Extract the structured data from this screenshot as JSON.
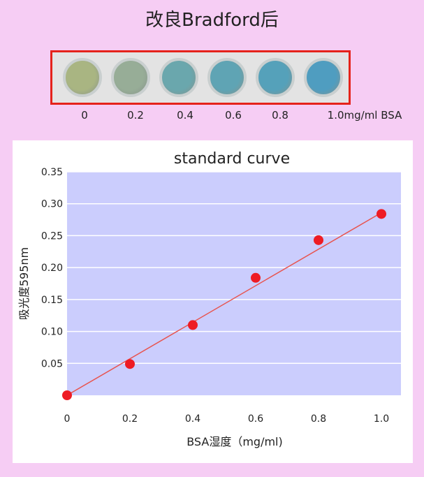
{
  "header": {
    "title": "改良Bradford后"
  },
  "wells": {
    "labels": [
      "0",
      "0.2",
      "0.4",
      "0.6",
      "0.8",
      "1.0mg/ml BSA"
    ],
    "colors": [
      "#a9b582",
      "#97ad97",
      "#6aa7ad",
      "#5fa4b4",
      "#55a1ba",
      "#4f9dc0"
    ],
    "frame_color": "#e5231b"
  },
  "chart_data": {
    "type": "scatter",
    "title": "standard curve",
    "xlabel": "BSA湿度（mg/ml)",
    "ylabel": "吸光度595nm",
    "x": [
      0,
      0.2,
      0.4,
      0.6,
      0.8,
      1.0
    ],
    "y": [
      0.0,
      0.049,
      0.11,
      0.184,
      0.243,
      0.284
    ],
    "xlim": [
      0,
      1.0
    ],
    "ylim": [
      0,
      0.35
    ],
    "x_ticks": [
      "0",
      "0.2",
      "0.4",
      "0.6",
      "0.8",
      "1.0"
    ],
    "y_ticks": [
      "0.05",
      "0.10",
      "0.15",
      "0.20",
      "0.25",
      "0.30",
      "0.35"
    ],
    "y_tick_values": [
      0.05,
      0.1,
      0.15,
      0.2,
      0.25,
      0.3,
      0.35
    ],
    "trendline": {
      "from": [
        0,
        0.0
      ],
      "to": [
        1.0,
        0.286
      ]
    },
    "grid": true,
    "colors": {
      "plot_bg": "#cbcdfd",
      "grid": "#ffffff",
      "point": "#ee1c24",
      "line": "#e8544f"
    }
  }
}
